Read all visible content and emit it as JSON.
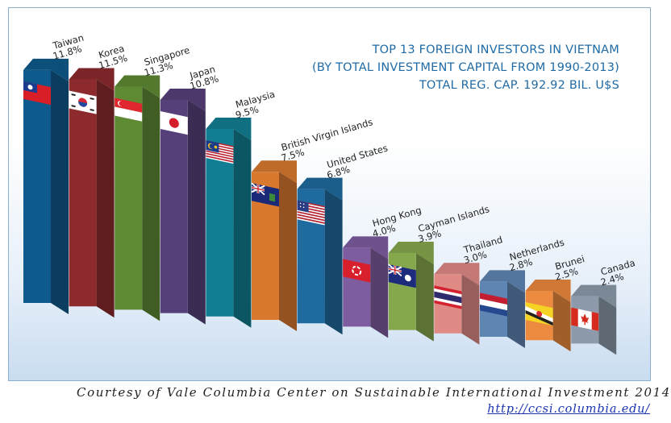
{
  "title": {
    "line1": "TOP 13 FOREIGN INVESTORS IN VIETNAM",
    "line2": "(BY TOTAL INVESTMENT CAPITAL FROM 1990-2013)",
    "line3": "TOTAL REG. CAP. 192.92 BIL. U$S"
  },
  "credit": {
    "text": "Courtesy of Vale Columbia Center on Sustainable International Investment 2014",
    "link": "http://ccsi.columbia.edu/"
  },
  "chart_data": {
    "type": "bar",
    "title": "TOP 13 FOREIGN INVESTORS IN VIETNAM",
    "subtitle": "(BY TOTAL INVESTMENT CAPITAL FROM 1990-2013) TOTAL REG. CAP. 192.92 BIL. U$S",
    "categories": [
      "Taiwan",
      "Korea",
      "Singapore",
      "Japan",
      "Malaysia",
      "British Virgin Islands",
      "United States",
      "Hong Kong",
      "Cayman Islands",
      "Thailand",
      "Netherlands",
      "Brunei",
      "Canada"
    ],
    "values": [
      11.8,
      11.5,
      11.3,
      10.8,
      9.5,
      7.5,
      6.8,
      4.0,
      3.9,
      3.0,
      2.8,
      2.5,
      2.4
    ],
    "value_labels": [
      "11.8%",
      "11.5%",
      "11.3%",
      "10.8%",
      "9.5%",
      "7.5%",
      "6.8%",
      "4.0%",
      "3.9%",
      "3.0%",
      "2.8%",
      "2.5%",
      "2.4%"
    ],
    "unit": "%",
    "colors": [
      "#0f5a8c",
      "#8c2a2e",
      "#5e8a34",
      "#56407a",
      "#127e93",
      "#d8792f",
      "#1f6a9e",
      "#7e5ca0",
      "#86a84c",
      "#e08a86",
      "#5f85b2",
      "#ec8a3f",
      "#8c9aab"
    ],
    "flags": [
      "taiwan-flag",
      "korea-flag",
      "singapore-flag",
      "japan-flag",
      "malaysia-flag",
      "bvi-flag",
      "us-flag",
      "hongkong-flag",
      "cayman-flag",
      "thailand-flag",
      "netherlands-flag",
      "brunei-flag",
      "canada-flag"
    ],
    "grid": false,
    "legend": "none"
  }
}
